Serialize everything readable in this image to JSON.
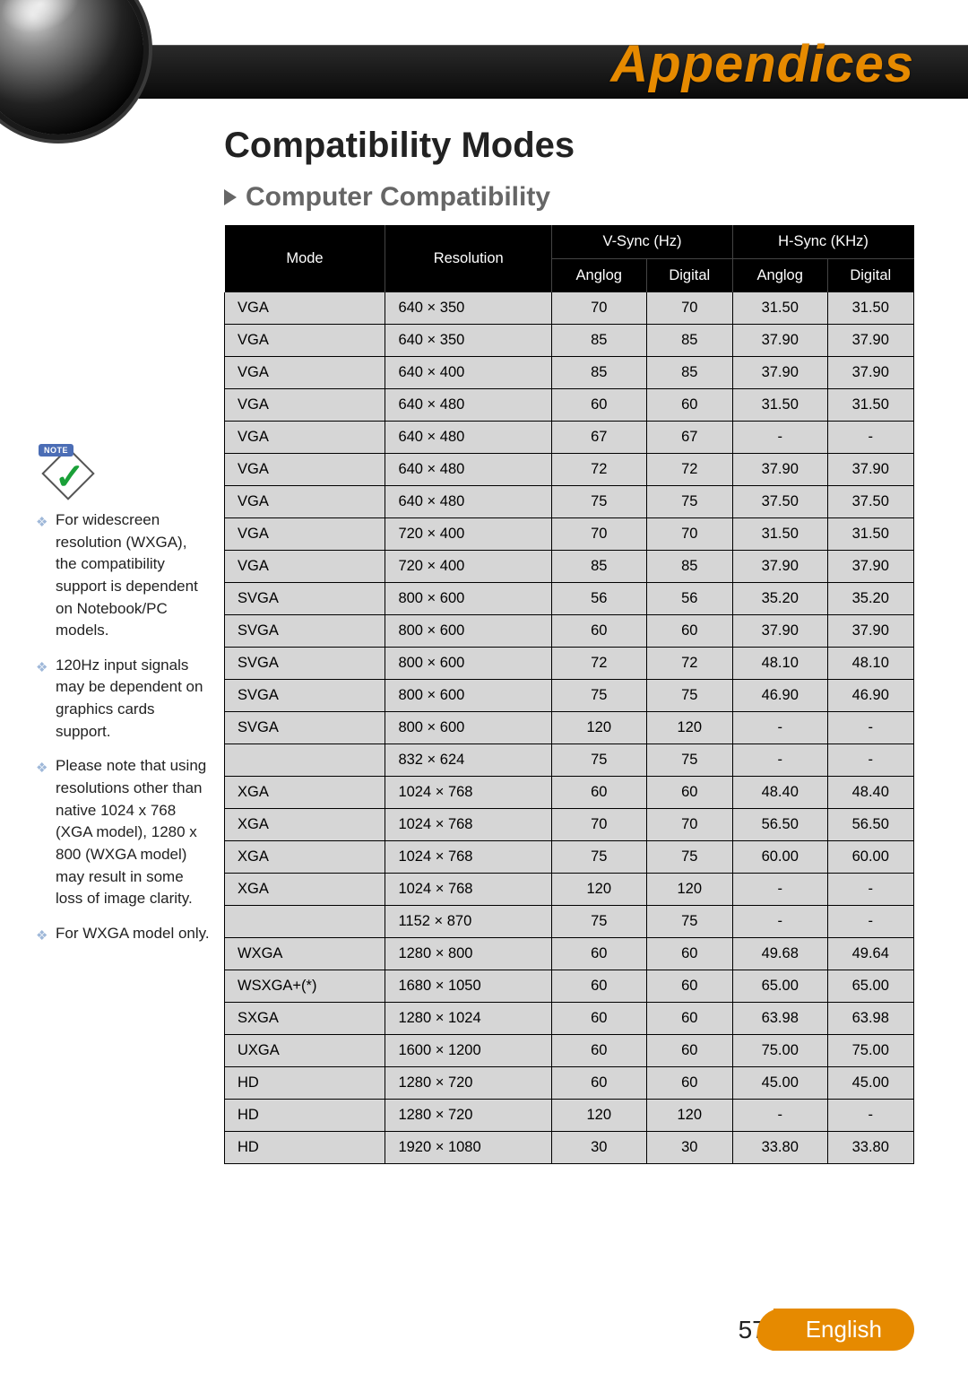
{
  "chapter": "Appendices",
  "section": "Compatibility Modes",
  "subsection": "Computer Compatibility",
  "note_badge": "NOTE",
  "notes": [
    "For widescreen resolution (WXGA), the compatibility support is dependent on Notebook/PC models.",
    "120Hz input signals may be dependent on graphics cards support.",
    "Please note that using resolutions other than native 1024 x 768 (XGA model), 1280 x 800 (WXGA model) may result in some loss of image clarity.",
    "For WXGA model only."
  ],
  "table": {
    "head": {
      "mode": "Mode",
      "resolution": "Resolution",
      "vsync": "V-Sync (Hz)",
      "hsync": "H-Sync (KHz)",
      "analog": "Anglog",
      "digital": "Digital"
    },
    "rows": [
      [
        "VGA",
        "640 × 350",
        "70",
        "70",
        "31.50",
        "31.50"
      ],
      [
        "VGA",
        "640 × 350",
        "85",
        "85",
        "37.90",
        "37.90"
      ],
      [
        "VGA",
        "640 × 400",
        "85",
        "85",
        "37.90",
        "37.90"
      ],
      [
        "VGA",
        "640 × 480",
        "60",
        "60",
        "31.50",
        "31.50"
      ],
      [
        "VGA",
        "640 × 480",
        "67",
        "67",
        "-",
        "-"
      ],
      [
        "VGA",
        "640 × 480",
        "72",
        "72",
        "37.90",
        "37.90"
      ],
      [
        "VGA",
        "640 × 480",
        "75",
        "75",
        "37.50",
        "37.50"
      ],
      [
        "VGA",
        "720 × 400",
        "70",
        "70",
        "31.50",
        "31.50"
      ],
      [
        "VGA",
        "720 × 400",
        "85",
        "85",
        "37.90",
        "37.90"
      ],
      [
        "SVGA",
        "800 × 600",
        "56",
        "56",
        "35.20",
        "35.20"
      ],
      [
        "SVGA",
        "800 × 600",
        "60",
        "60",
        "37.90",
        "37.90"
      ],
      [
        "SVGA",
        "800 × 600",
        "72",
        "72",
        "48.10",
        "48.10"
      ],
      [
        "SVGA",
        "800 × 600",
        "75",
        "75",
        "46.90",
        "46.90"
      ],
      [
        "SVGA",
        "800 × 600",
        "120",
        "120",
        "-",
        "-"
      ],
      [
        "",
        "832 × 624",
        "75",
        "75",
        "-",
        "-"
      ],
      [
        "XGA",
        "1024 × 768",
        "60",
        "60",
        "48.40",
        "48.40"
      ],
      [
        "XGA",
        "1024 × 768",
        "70",
        "70",
        "56.50",
        "56.50"
      ],
      [
        "XGA",
        "1024 × 768",
        "75",
        "75",
        "60.00",
        "60.00"
      ],
      [
        "XGA",
        "1024 × 768",
        "120",
        "120",
        "-",
        "-"
      ],
      [
        "",
        "1152 × 870",
        "75",
        "75",
        "-",
        "-"
      ],
      [
        "WXGA",
        "1280 × 800",
        "60",
        "60",
        "49.68",
        "49.64"
      ],
      [
        "WSXGA+(*)",
        "1680 × 1050",
        "60",
        "60",
        "65.00",
        "65.00"
      ],
      [
        "SXGA",
        "1280 × 1024",
        "60",
        "60",
        "63.98",
        "63.98"
      ],
      [
        "UXGA",
        "1600 × 1200",
        "60",
        "60",
        "75.00",
        "75.00"
      ],
      [
        "HD",
        "1280 × 720",
        "60",
        "60",
        "45.00",
        "45.00"
      ],
      [
        "HD",
        "1280 × 720",
        "120",
        "120",
        "-",
        "-"
      ],
      [
        "HD",
        "1920 × 1080",
        "30",
        "30",
        "33.80",
        "33.80"
      ]
    ]
  },
  "page_number": "57",
  "language": "English",
  "colors": {
    "accent": "#e68a00",
    "header_bg": "#1a1a1a",
    "table_header_bg": "#000000",
    "row_bg": "#d6d6d6",
    "text": "#222222",
    "subheading": "#666666"
  }
}
